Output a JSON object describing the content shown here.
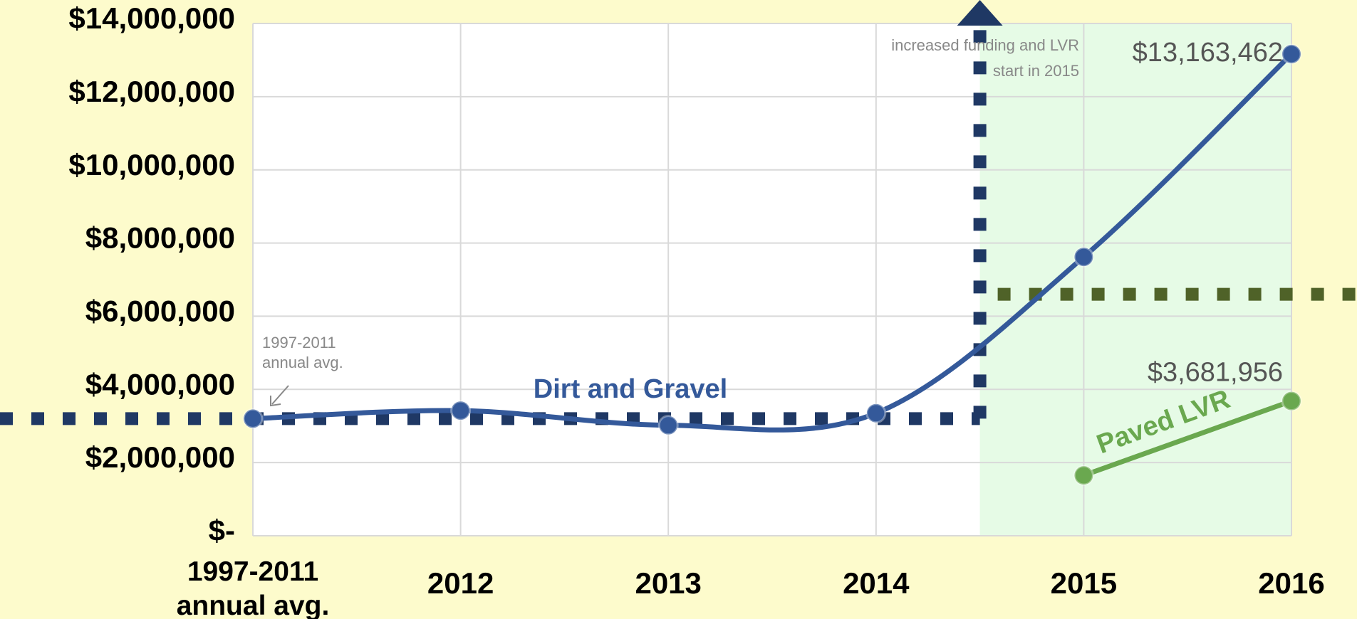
{
  "chart_data": {
    "type": "line",
    "categories": [
      "1997-2011 annual avg.",
      "2012",
      "2013",
      "2014",
      "2015",
      "2016"
    ],
    "series": [
      {
        "name": "Dirt and Gravel",
        "color": "#34599a",
        "values": [
          3200000,
          3420000,
          3020000,
          3350000,
          7620000,
          13163462
        ],
        "value_labels": [
          null,
          null,
          null,
          null,
          null,
          "$13,163,462"
        ]
      },
      {
        "name": "Paved LVR",
        "color": "#6aa84f",
        "values": [
          null,
          null,
          null,
          null,
          1650000,
          3681956
        ],
        "value_labels": [
          null,
          null,
          null,
          null,
          null,
          "$3,681,956"
        ]
      }
    ],
    "ylim": [
      0,
      14000000
    ],
    "yticks": [
      {
        "value": 0,
        "label": "$-"
      },
      {
        "value": 2000000,
        "label": "$2,000,000"
      },
      {
        "value": 4000000,
        "label": "$4,000,000"
      },
      {
        "value": 6000000,
        "label": "$6,000,000"
      },
      {
        "value": 8000000,
        "label": "$8,000,000"
      },
      {
        "value": 10000000,
        "label": "$10,000,000"
      },
      {
        "value": 12000000,
        "label": "$12,000,000"
      },
      {
        "value": 14000000,
        "label": "$14,000,000"
      }
    ],
    "grid": true,
    "reference_lines": [
      {
        "value": 3200000,
        "color": "#1f3864"
      },
      {
        "value": 6600000,
        "color": "#4f6228"
      }
    ],
    "annotations": [
      "1997-2011 annual avg.",
      "increased funding and LVR start in 2015"
    ]
  }
}
